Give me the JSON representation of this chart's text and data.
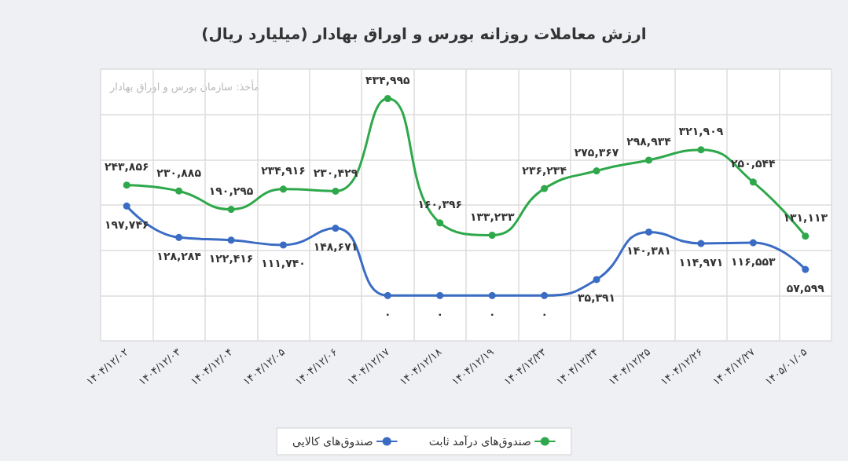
{
  "chart_data": {
    "type": "line",
    "title": "ارزش معاملات روزانه بورس و اوراق بهادار (میلیارد ریال)",
    "annotations": [
      "مأخذ: سازمان بورس و اوراق بهادار"
    ],
    "categories": [
      "۱۴۰۴/۱۲/۰۲",
      "۱۴۰۴/۱۲/۰۳",
      "۱۴۰۴/۱۲/۰۴",
      "۱۴۰۴/۱۲/۰۵",
      "۱۴۰۴/۱۲/۰۶",
      "۱۴۰۴/۱۲/۱۷",
      "۱۴۰۴/۱۲/۱۸",
      "۱۴۰۴/۱۲/۱۹",
      "۱۴۰۴/۱۲/۲۳",
      "۱۴۰۴/۱۲/۲۴",
      "۱۴۰۴/۱۲/۲۵",
      "۱۴۰۴/۱۲/۲۶",
      "۱۴۰۴/۱۲/۲۷",
      "۱۴۰۵/۰۱/۰۵"
    ],
    "series": [
      {
        "name": "صندوق‌های درآمد ثابت",
        "color": "#2ea84a",
        "values": [
          243856,
          230885,
          190295,
          234916,
          230429,
          434995,
          160396,
          133233,
          236234,
          275367,
          298934,
          321909,
          250544,
          131113
        ],
        "value_labels": [
          "۲۴۳,۸۵۶",
          "۲۳۰,۸۸۵",
          "۱۹۰,۲۹۵",
          "۲۳۴,۹۱۶",
          "۲۳۰,۴۲۹",
          "۴۳۴,۹۹۵",
          "۱۶۰,۳۹۶",
          "۱۳۳,۲۳۳",
          "۲۳۶,۲۳۴",
          "۲۷۵,۳۶۷",
          "۲۹۸,۹۳۴",
          "۳۲۱,۹۰۹",
          "۲۵۰,۵۴۴",
          "۱۳۱,۱۱۳"
        ]
      },
      {
        "name": "صندوق‌های کالایی",
        "color": "#3b6cc4",
        "values": [
          197746,
          128284,
          122416,
          111740,
          148671,
          0,
          0,
          0,
          0,
          35391,
          140381,
          114971,
          116553,
          57599
        ],
        "value_labels": [
          "۱۹۷,۷۴۶",
          "۱۲۸,۲۸۴",
          "۱۲۲,۴۱۶",
          "۱۱۱,۷۴۰",
          "۱۴۸,۶۷۱",
          "۰",
          "۰",
          "۰",
          "۰",
          "۳۵,۳۹۱",
          "۱۴۰,۳۸۱",
          "۱۱۴,۹۷۱",
          "۱۱۶,۵۵۳",
          "۵۷,۵۹۹"
        ]
      }
    ],
    "ylim": [
      -100000,
      500000
    ],
    "yticks": [
      {
        "value": -100000,
        "label": null
      },
      {
        "value": 0,
        "label": null
      },
      {
        "value": 100000,
        "label": null
      },
      {
        "value": 200000,
        "label": null
      },
      {
        "value": 300000,
        "label": null
      },
      {
        "value": 400000,
        "label": null
      },
      {
        "value": 500000,
        "label": null
      }
    ],
    "tick_labels": "x",
    "grid": true,
    "legend": "bottom",
    "marker": "circle",
    "line_style": "solid"
  }
}
